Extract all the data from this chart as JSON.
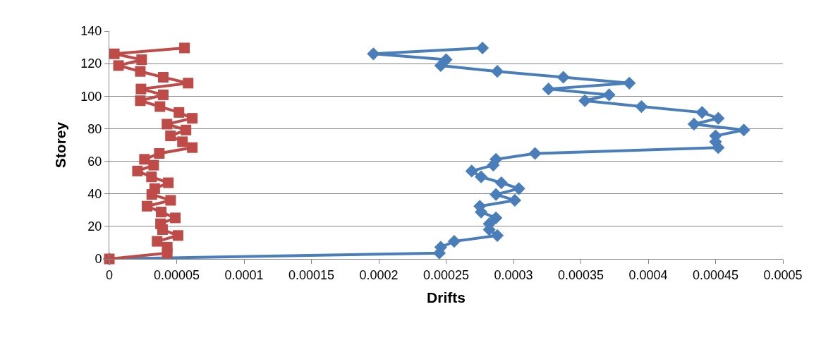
{
  "chart_data": {
    "type": "line",
    "xlabel": "Drifts",
    "ylabel": "Storey",
    "xlim": [
      0,
      0.0005
    ],
    "xticks": [
      0,
      {
        "value": 5e-05,
        "label": "0.00005"
      },
      {
        "value": 0.0001,
        "label": "0.0001"
      },
      {
        "value": 0.00015,
        "label": "0.00015"
      },
      {
        "value": 0.0002,
        "label": "0.0002"
      },
      {
        "value": 0.00025,
        "label": "0.00025"
      },
      {
        "value": 0.0003,
        "label": "0.0003"
      },
      {
        "value": 0.00035,
        "label": "0.00035"
      },
      {
        "value": 0.0004,
        "label": "0.0004"
      },
      {
        "value": 0.00045,
        "label": "0.00045"
      },
      {
        "value": 0.0005,
        "label": "0.0005"
      }
    ],
    "ylim": [
      0,
      140
    ],
    "yticks": [
      0,
      20,
      40,
      60,
      80,
      100,
      120,
      140
    ],
    "grid": "y",
    "legend": false,
    "series": [
      {
        "color": "#4a7ebb",
        "marker": "diamond",
        "x": [
          0,
          0.000245,
          0.000246,
          0.000256,
          0.000288,
          0.000282,
          0.000282,
          0.000287,
          0.000276,
          0.000275,
          0.000301,
          0.000287,
          0.000304,
          0.000291,
          0.000276,
          0.000269,
          0.000285,
          0.000287,
          0.000316,
          0.000452,
          0.00045,
          0.00045,
          0.000471,
          0.000434,
          0.000452,
          0.00044,
          0.000395,
          0.000353,
          0.000371,
          0.000326,
          0.000386,
          0.000337,
          0.000288,
          0.000246,
          0.00025,
          0.000196,
          0.000277
        ],
        "values": [
          0,
          3.6,
          7.2,
          10.8,
          14.4,
          18,
          21.6,
          25.2,
          28.8,
          32.4,
          36,
          39.6,
          43.2,
          46.8,
          50.4,
          54,
          57.6,
          61.2,
          64.8,
          68.4,
          72,
          75.6,
          79.2,
          82.8,
          86.4,
          90,
          93.6,
          97.2,
          100.8,
          104.4,
          108,
          111.6,
          115.2,
          118.8,
          122.4,
          126,
          129.6
        ]
      },
      {
        "color": "#be4b48",
        "marker": "square",
        "x": [
          0,
          4.3e-05,
          4.3e-05,
          3.55e-05,
          5.1e-05,
          3.95e-05,
          3.8e-05,
          4.9e-05,
          3.85e-05,
          2.8e-05,
          4.55e-05,
          3.15e-05,
          3.37e-05,
          4.38e-05,
          3.13e-05,
          2.09e-05,
          3.29e-05,
          2.61e-05,
          3.71e-05,
          6.16e-05,
          5.43e-05,
          4.54e-05,
          5.69e-05,
          4.28e-05,
          6.16e-05,
          5.17e-05,
          3.76e-05,
          2.3e-05,
          4e-05,
          2.35e-05,
          5.85e-05,
          4e-05,
          2.3e-05,
          6.8e-06,
          2.4e-05,
          3.7e-06,
          5.58e-05
        ],
        "values": [
          0,
          3.6,
          7.2,
          10.8,
          14.4,
          18,
          21.6,
          25.2,
          28.8,
          32.4,
          36,
          39.6,
          43.2,
          46.8,
          50.4,
          54,
          57.6,
          61.2,
          64.8,
          68.4,
          72,
          75.6,
          79.2,
          82.8,
          86.4,
          90,
          93.6,
          97.2,
          100.8,
          104.4,
          108,
          111.6,
          115.2,
          118.8,
          122.4,
          126,
          129.6
        ]
      }
    ]
  }
}
